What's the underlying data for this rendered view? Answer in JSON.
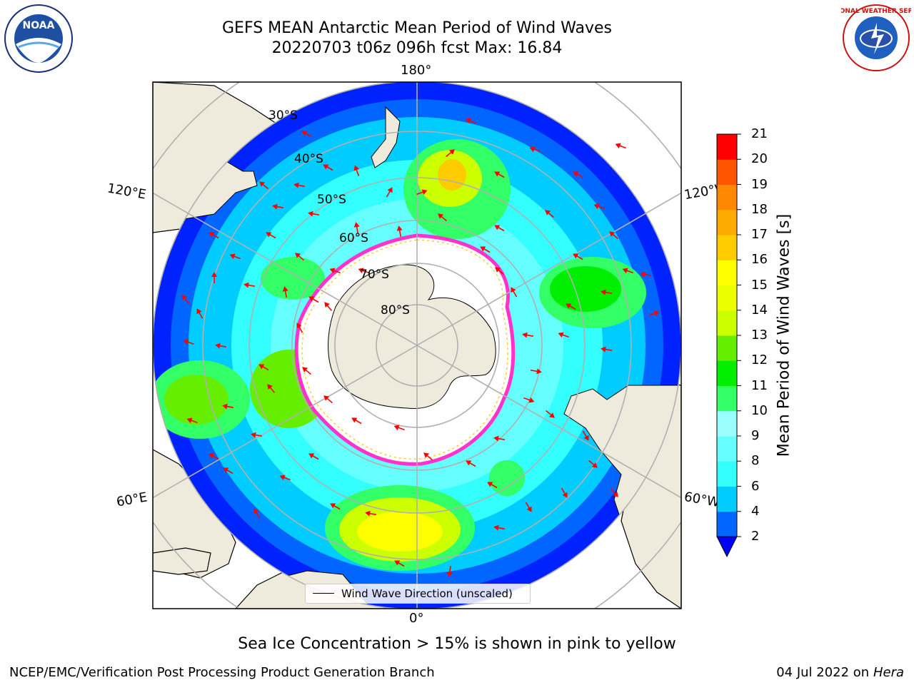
{
  "title": {
    "line1": "GEFS MEAN Antarctic Mean Period of Wind Waves",
    "line2": "20220703 t06z 096h fcst   Max: 16.84"
  },
  "map": {
    "projection": "south polar stereographic",
    "lon_labels": {
      "top": "180°",
      "bottom": "0°",
      "left_upper": "120°E",
      "left_lower": "60°E",
      "right_upper": "120°W",
      "right_lower": "60°W"
    },
    "lat_labels": [
      "30°S",
      "40°S",
      "50°S",
      "60°S",
      "70°S",
      "80°S"
    ],
    "legend_label": "Wind Wave Direction (unscaled)",
    "colors": {
      "land": "#EFEBDC",
      "sea_ice_edge_pink": "#FF33CC",
      "sea_ice_edge_yellow": "#FFCC33",
      "arrow": "#FF0000"
    }
  },
  "colorbar": {
    "label": "Mean Period of Wind Waves [s]",
    "ticks": [
      "2",
      "4",
      "6",
      "8",
      "9",
      "10",
      "11",
      "12",
      "13",
      "14",
      "15",
      "16",
      "17",
      "18",
      "19",
      "20",
      "21"
    ],
    "colors": [
      "#0066FF",
      "#00CCFF",
      "#33FFFF",
      "#66FFFF",
      "#99FFFF",
      "#33FF66",
      "#00EE00",
      "#66EE00",
      "#CCFF00",
      "#EEFF00",
      "#FFFF00",
      "#FFCC00",
      "#FFAA00",
      "#FF8800",
      "#FF5500",
      "#FF0000"
    ],
    "under_color": "#0000FF"
  },
  "caption": "Sea Ice Concentration > 15% is shown in pink to yellow",
  "footer": {
    "left": "NCEP/EMC/Verification Post Processing Product Generation Branch",
    "date": "04 Jul 2022 on ",
    "machine": "Hera"
  },
  "logos": {
    "noaa_text": "NOAA",
    "nws_text": "NATIONAL WEATHER SERVICE"
  }
}
